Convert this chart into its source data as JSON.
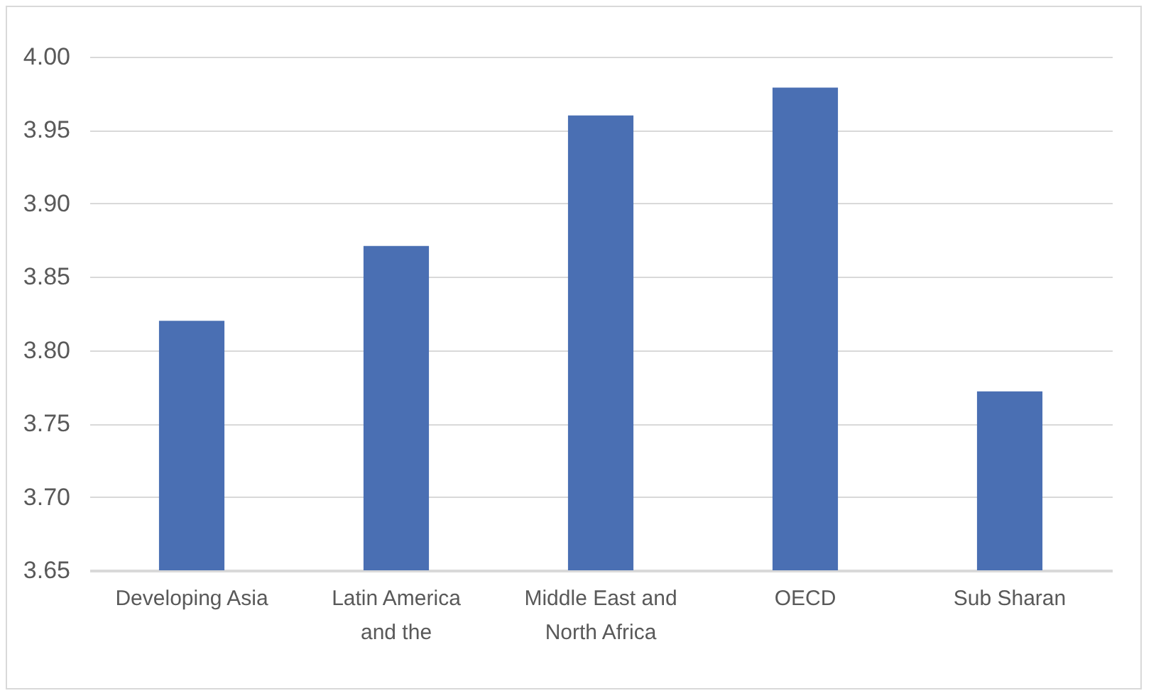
{
  "chart_data": {
    "type": "bar",
    "categories": [
      "Developing Asia",
      "Latin America and the",
      "Middle East and North Africa",
      "OECD",
      "Sub Sharan"
    ],
    "values": [
      3.82,
      3.871,
      3.96,
      3.979,
      3.772
    ],
    "color": "#4a6fb3",
    "ylim": [
      3.65,
      4.0
    ],
    "yticks": [
      {
        "value": 3.65,
        "label": "3.65"
      },
      {
        "value": 3.7,
        "label": "3.70"
      },
      {
        "value": 3.75,
        "label": "3.75"
      },
      {
        "value": 3.8,
        "label": "3.80"
      },
      {
        "value": 3.85,
        "label": "3.85"
      },
      {
        "value": 3.9,
        "label": "3.90"
      },
      {
        "value": 3.95,
        "label": "3.95"
      },
      {
        "value": 4.0,
        "label": "4.00"
      }
    ],
    "grid": "y"
  }
}
